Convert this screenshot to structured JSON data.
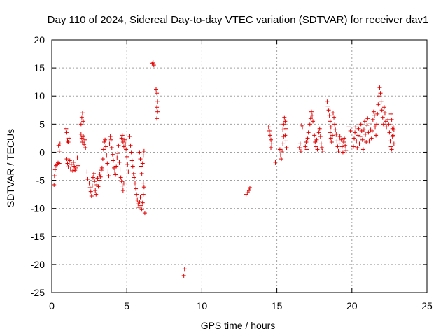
{
  "chart_data": {
    "type": "scatter",
    "title": "Day 110 of 2024, Sidereal Day-to-day VTEC variation (SDTVAR) for receiver dav1",
    "xlabel": "GPS time / hours",
    "ylabel": "SDTVAR / TECUs",
    "xlim": [
      0,
      25
    ],
    "ylim": [
      -25,
      20
    ],
    "xticks": [
      "0",
      "5",
      "10",
      "15",
      "20",
      "25"
    ],
    "yticks": [
      "20",
      "15",
      "10",
      "5",
      "0",
      "-5",
      "-10",
      "-15",
      "-20",
      "-25"
    ],
    "grid": true,
    "marker": "+",
    "marker_color": "#e00000",
    "series": [
      {
        "name": "SDTVAR",
        "points": [
          [
            0.15,
            -5.8
          ],
          [
            0.18,
            -4.2
          ],
          [
            0.22,
            -3.1
          ],
          [
            0.28,
            -2.4
          ],
          [
            0.35,
            -2.1
          ],
          [
            0.42,
            -1.9
          ],
          [
            0.5,
            -2.0
          ],
          [
            0.45,
            1.2
          ],
          [
            0.5,
            0.2
          ],
          [
            0.55,
            1.5
          ],
          [
            0.95,
            4.2
          ],
          [
            1.0,
            3.5
          ],
          [
            1.05,
            2.0
          ],
          [
            1.1,
            1.8
          ],
          [
            1.15,
            2.5
          ],
          [
            1.0,
            -1.2
          ],
          [
            1.05,
            -2.0
          ],
          [
            1.1,
            -2.6
          ],
          [
            1.2,
            -1.5
          ],
          [
            1.25,
            -3.0
          ],
          [
            1.3,
            -2.2
          ],
          [
            1.4,
            -3.3
          ],
          [
            1.45,
            -1.8
          ],
          [
            1.5,
            -2.5
          ],
          [
            1.55,
            -3.2
          ],
          [
            1.6,
            -2.8
          ],
          [
            1.7,
            -1.0
          ],
          [
            1.75,
            -2.4
          ],
          [
            1.95,
            5.0
          ],
          [
            2.0,
            6.2
          ],
          [
            2.05,
            7.0
          ],
          [
            2.1,
            5.5
          ],
          [
            1.95,
            3.2
          ],
          [
            2.0,
            2.5
          ],
          [
            2.05,
            1.8
          ],
          [
            2.1,
            2.9
          ],
          [
            2.15,
            1.4
          ],
          [
            2.2,
            2.2
          ],
          [
            2.25,
            0.8
          ],
          [
            2.35,
            -3.5
          ],
          [
            2.4,
            -4.8
          ],
          [
            2.5,
            -5.5
          ],
          [
            2.55,
            -6.3
          ],
          [
            2.6,
            -7.0
          ],
          [
            2.65,
            -7.8
          ],
          [
            2.7,
            -6.0
          ],
          [
            2.75,
            -4.5
          ],
          [
            2.8,
            -3.8
          ],
          [
            2.85,
            -5.2
          ],
          [
            2.9,
            -6.8
          ],
          [
            2.95,
            -7.5
          ],
          [
            3.0,
            -5.8
          ],
          [
            3.05,
            -4.6
          ],
          [
            3.1,
            -6.1
          ],
          [
            3.15,
            -5.0
          ],
          [
            3.2,
            -3.9
          ],
          [
            3.25,
            -4.4
          ],
          [
            3.3,
            -3.2
          ],
          [
            3.35,
            -2.8
          ],
          [
            3.4,
            -1.2
          ],
          [
            3.45,
            0.5
          ],
          [
            3.5,
            1.8
          ],
          [
            3.55,
            2.2
          ],
          [
            3.6,
            1.0
          ],
          [
            3.65,
            -0.5
          ],
          [
            3.7,
            -2.0
          ],
          [
            3.75,
            -3.5
          ],
          [
            3.8,
            -4.2
          ],
          [
            3.85,
            1.5
          ],
          [
            3.9,
            2.8
          ],
          [
            3.95,
            2.2
          ],
          [
            4.0,
            0.8
          ],
          [
            4.05,
            -0.4
          ],
          [
            4.1,
            -1.5
          ],
          [
            4.15,
            -2.8
          ],
          [
            4.2,
            -3.5
          ],
          [
            4.25,
            -4.0
          ],
          [
            4.3,
            -2.5
          ],
          [
            4.35,
            -1.0
          ],
          [
            4.4,
            -0.2
          ],
          [
            4.45,
            1.2
          ],
          [
            4.5,
            -1.8
          ],
          [
            4.55,
            -3.0
          ],
          [
            4.6,
            -4.5
          ],
          [
            4.65,
            -5.2
          ],
          [
            4.7,
            -6.0
          ],
          [
            4.75,
            -6.8
          ],
          [
            4.8,
            -5.5
          ],
          [
            4.65,
            2.5
          ],
          [
            4.7,
            3.0
          ],
          [
            4.75,
            1.8
          ],
          [
            4.8,
            1.0
          ],
          [
            4.85,
            2.2
          ],
          [
            4.9,
            1.5
          ],
          [
            4.95,
            0.5
          ],
          [
            5.0,
            -0.8
          ],
          [
            5.05,
            -2.2
          ],
          [
            5.1,
            -3.5
          ],
          [
            5.2,
            2.8
          ],
          [
            5.25,
            1.2
          ],
          [
            5.3,
            0.0
          ],
          [
            5.35,
            -1.5
          ],
          [
            5.4,
            -2.5
          ],
          [
            5.45,
            -3.8
          ],
          [
            5.5,
            -4.5
          ],
          [
            5.55,
            -5.5
          ],
          [
            5.6,
            -6.5
          ],
          [
            5.65,
            -7.5
          ],
          [
            5.7,
            -8.5
          ],
          [
            5.75,
            -9.2
          ],
          [
            5.8,
            -9.8
          ],
          [
            5.85,
            -8.8
          ],
          [
            5.9,
            -8.0
          ],
          [
            5.95,
            -9.5
          ],
          [
            6.0,
            -10.2
          ],
          [
            6.05,
            -9.0
          ],
          [
            6.1,
            -7.5
          ],
          [
            6.15,
            -6.2
          ],
          [
            5.85,
            0.0
          ],
          [
            5.9,
            -1.2
          ],
          [
            5.95,
            -2.5
          ],
          [
            6.0,
            -3.8
          ],
          [
            6.05,
            -2.0
          ],
          [
            6.1,
            -0.5
          ],
          [
            6.15,
            0.2
          ],
          [
            6.2,
            -10.8
          ],
          [
            6.1,
            -5.5
          ],
          [
            6.7,
            15.8
          ],
          [
            6.75,
            16.0
          ],
          [
            6.8,
            15.5
          ],
          [
            6.95,
            11.2
          ],
          [
            7.0,
            10.5
          ],
          [
            7.05,
            9.0
          ],
          [
            7.0,
            8.0
          ],
          [
            7.05,
            7.2
          ],
          [
            7.0,
            6.0
          ],
          [
            8.85,
            -20.8
          ],
          [
            8.8,
            -22.0
          ],
          [
            12.95,
            -7.5
          ],
          [
            13.05,
            -7.2
          ],
          [
            13.15,
            -6.8
          ],
          [
            13.2,
            -6.3
          ],
          [
            14.45,
            4.5
          ],
          [
            14.5,
            3.8
          ],
          [
            14.55,
            3.0
          ],
          [
            14.6,
            2.2
          ],
          [
            14.65,
            1.5
          ],
          [
            14.6,
            0.8
          ],
          [
            14.9,
            -1.8
          ],
          [
            15.2,
            0.5
          ],
          [
            15.25,
            -0.5
          ],
          [
            15.3,
            -1.2
          ],
          [
            15.35,
            0.2
          ],
          [
            15.4,
            1.5
          ],
          [
            15.45,
            2.8
          ],
          [
            15.4,
            4.0
          ],
          [
            15.45,
            5.0
          ],
          [
            15.5,
            6.2
          ],
          [
            15.55,
            5.5
          ],
          [
            15.6,
            4.2
          ],
          [
            15.55,
            3.0
          ],
          [
            15.6,
            2.0
          ],
          [
            15.65,
            0.8
          ],
          [
            16.5,
            0.8
          ],
          [
            16.55,
            1.5
          ],
          [
            16.6,
            0.2
          ],
          [
            16.65,
            4.8
          ],
          [
            16.7,
            4.5
          ],
          [
            16.9,
            1.0
          ],
          [
            16.95,
            1.8
          ],
          [
            17.0,
            0.5
          ],
          [
            17.05,
            2.5
          ],
          [
            17.1,
            3.5
          ],
          [
            17.2,
            5.0
          ],
          [
            17.25,
            6.0
          ],
          [
            17.3,
            7.2
          ],
          [
            17.35,
            6.5
          ],
          [
            17.4,
            5.5
          ],
          [
            17.5,
            3.0
          ],
          [
            17.55,
            1.8
          ],
          [
            17.6,
            1.0
          ],
          [
            17.65,
            2.2
          ],
          [
            17.7,
            0.5
          ],
          [
            17.8,
            3.5
          ],
          [
            17.85,
            4.2
          ],
          [
            17.9,
            2.8
          ],
          [
            17.95,
            1.5
          ],
          [
            18.0,
            0.8
          ],
          [
            18.05,
            0.2
          ],
          [
            18.35,
            9.0
          ],
          [
            18.4,
            8.2
          ],
          [
            18.45,
            7.5
          ],
          [
            18.5,
            6.5
          ],
          [
            18.55,
            5.5
          ],
          [
            18.6,
            4.5
          ],
          [
            18.55,
            3.5
          ],
          [
            18.6,
            2.5
          ],
          [
            18.65,
            1.8
          ],
          [
            18.7,
            3.0
          ],
          [
            18.75,
            7.0
          ],
          [
            18.8,
            6.2
          ],
          [
            18.85,
            5.0
          ],
          [
            18.9,
            4.0
          ],
          [
            18.95,
            3.2
          ],
          [
            19.0,
            2.0
          ],
          [
            19.05,
            1.0
          ],
          [
            19.1,
            0.2
          ],
          [
            19.15,
            1.5
          ],
          [
            19.2,
            2.8
          ],
          [
            19.3,
            2.2
          ],
          [
            19.35,
            1.0
          ],
          [
            19.4,
            0.0
          ],
          [
            19.45,
            1.8
          ],
          [
            19.5,
            2.5
          ],
          [
            19.55,
            1.2
          ],
          [
            19.6,
            0.3
          ],
          [
            19.8,
            4.5
          ],
          [
            19.9,
            3.8
          ],
          [
            20.1,
            1.0
          ],
          [
            20.15,
            2.5
          ],
          [
            20.2,
            3.5
          ],
          [
            20.25,
            4.5
          ],
          [
            20.3,
            2.0
          ],
          [
            20.35,
            0.8
          ],
          [
            20.4,
            3.0
          ],
          [
            20.45,
            4.2
          ],
          [
            20.5,
            1.5
          ],
          [
            20.55,
            2.8
          ],
          [
            20.6,
            5.0
          ],
          [
            20.65,
            3.8
          ],
          [
            20.7,
            2.2
          ],
          [
            20.75,
            0.5
          ],
          [
            20.8,
            4.0
          ],
          [
            20.85,
            5.5
          ],
          [
            20.9,
            3.2
          ],
          [
            20.95,
            1.8
          ],
          [
            21.0,
            4.8
          ],
          [
            21.05,
            6.0
          ],
          [
            21.1,
            3.5
          ],
          [
            21.15,
            2.0
          ],
          [
            21.2,
            5.2
          ],
          [
            21.25,
            4.0
          ],
          [
            21.3,
            2.5
          ],
          [
            21.35,
            3.8
          ],
          [
            21.4,
            5.8
          ],
          [
            21.45,
            7.2
          ],
          [
            21.5,
            6.5
          ],
          [
            21.55,
            4.5
          ],
          [
            21.6,
            3.0
          ],
          [
            21.65,
            5.0
          ],
          [
            21.7,
            6.8
          ],
          [
            21.75,
            8.5
          ],
          [
            21.8,
            10.0
          ],
          [
            21.85,
            11.5
          ],
          [
            21.9,
            10.5
          ],
          [
            21.95,
            9.0
          ],
          [
            22.0,
            7.5
          ],
          [
            22.05,
            6.2
          ],
          [
            22.1,
            5.0
          ],
          [
            22.15,
            8.0
          ],
          [
            22.2,
            7.0
          ],
          [
            22.25,
            5.5
          ],
          [
            22.3,
            4.5
          ],
          [
            22.4,
            5.8
          ],
          [
            22.45,
            5.0
          ],
          [
            22.5,
            3.5
          ],
          [
            22.55,
            2.0
          ],
          [
            22.6,
            1.0
          ],
          [
            22.65,
            0.5
          ],
          [
            22.7,
            2.8
          ],
          [
            22.75,
            4.5
          ],
          [
            22.6,
            6.8
          ],
          [
            22.65,
            5.8
          ],
          [
            22.7,
            4.2
          ],
          [
            22.75,
            3.0
          ],
          [
            22.8,
            1.5
          ],
          [
            22.8,
            4.0
          ]
        ]
      }
    ]
  }
}
